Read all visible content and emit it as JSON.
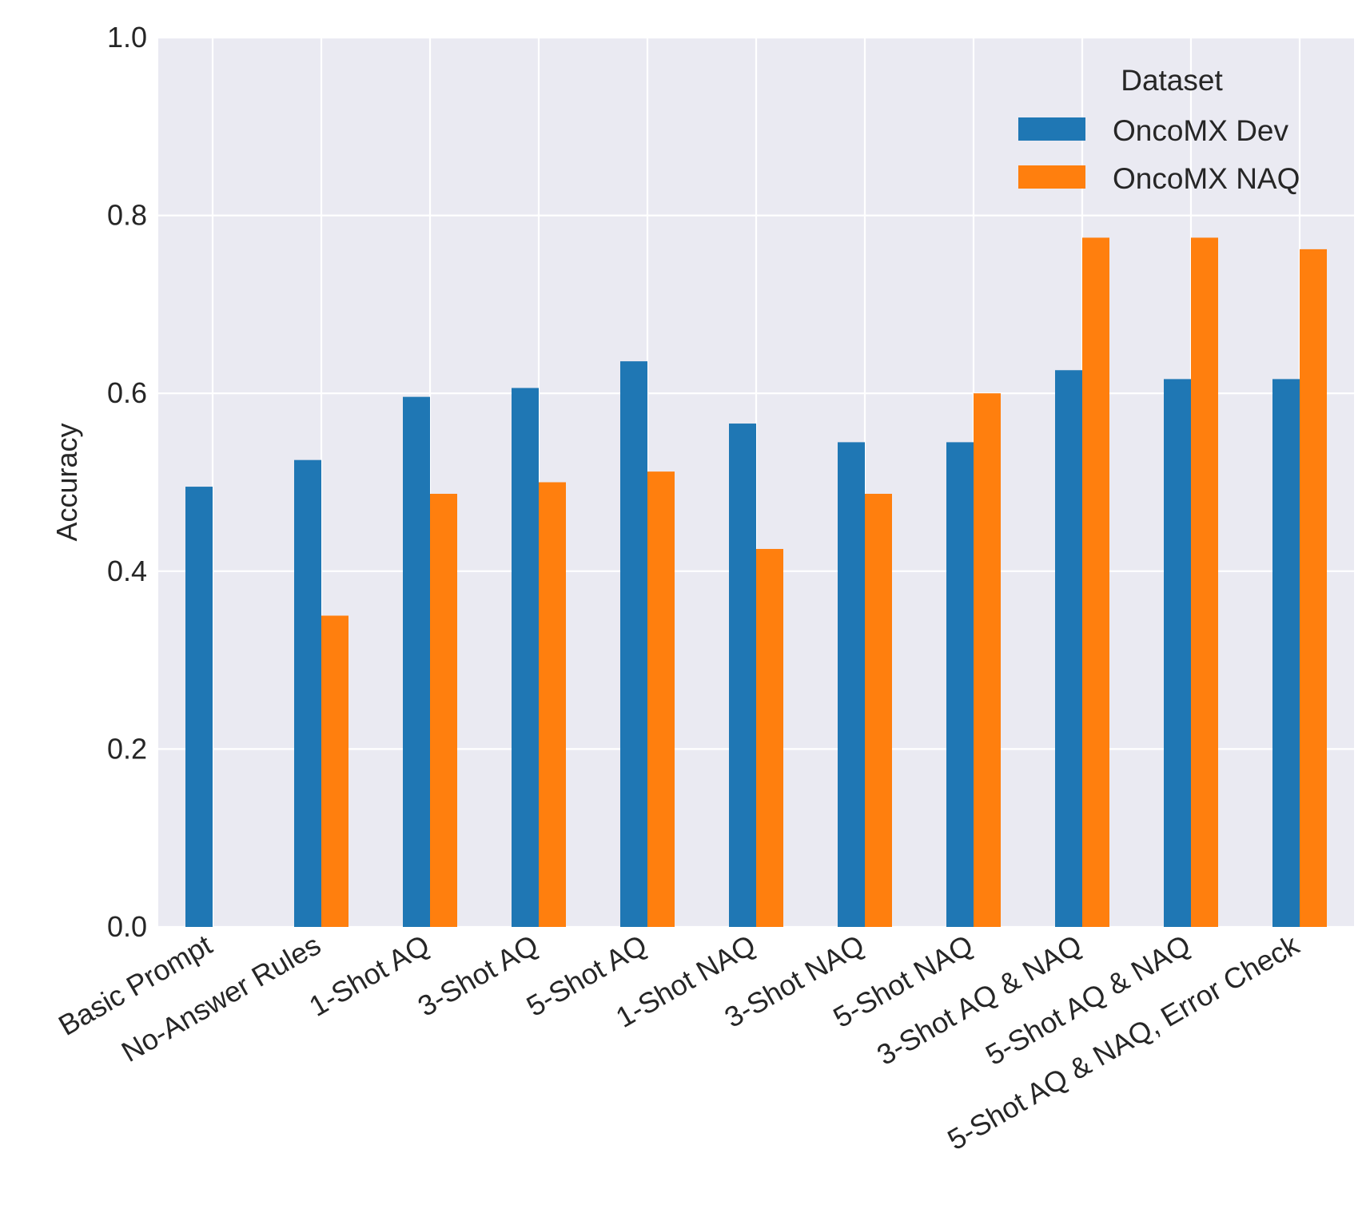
{
  "chart_data": {
    "type": "bar",
    "title": "",
    "xlabel": "",
    "ylabel": "Accuracy",
    "ylim": [
      0,
      1.0
    ],
    "yticks": [
      "0.0",
      "0.2",
      "0.4",
      "0.6",
      "0.8",
      "1.0"
    ],
    "ytick_values": [
      0,
      0.2,
      0.4,
      0.6,
      0.8,
      1.0
    ],
    "grid": true,
    "legend": {
      "title": "Dataset",
      "placement": "top-right"
    },
    "categories": [
      "Basic Prompt",
      "No-Answer Rules",
      "1-Shot AQ",
      "3-Shot AQ",
      "5-Shot AQ",
      "1-Shot NAQ",
      "3-Shot NAQ",
      "5-Shot NAQ",
      "3-Shot AQ & NAQ",
      "5-Shot AQ & NAQ",
      "5-Shot AQ & NAQ, Error Check"
    ],
    "series": [
      {
        "name": "OncoMX Dev",
        "color": "#1f77b4",
        "values": [
          0.495,
          0.525,
          0.596,
          0.606,
          0.636,
          0.566,
          0.545,
          0.545,
          0.626,
          0.616,
          0.616
        ]
      },
      {
        "name": "OncoMX NAQ",
        "color": "#ff7f0e",
        "values": [
          null,
          0.35,
          0.487,
          0.5,
          0.512,
          0.425,
          0.487,
          0.6,
          0.775,
          0.775,
          0.762
        ]
      }
    ]
  }
}
